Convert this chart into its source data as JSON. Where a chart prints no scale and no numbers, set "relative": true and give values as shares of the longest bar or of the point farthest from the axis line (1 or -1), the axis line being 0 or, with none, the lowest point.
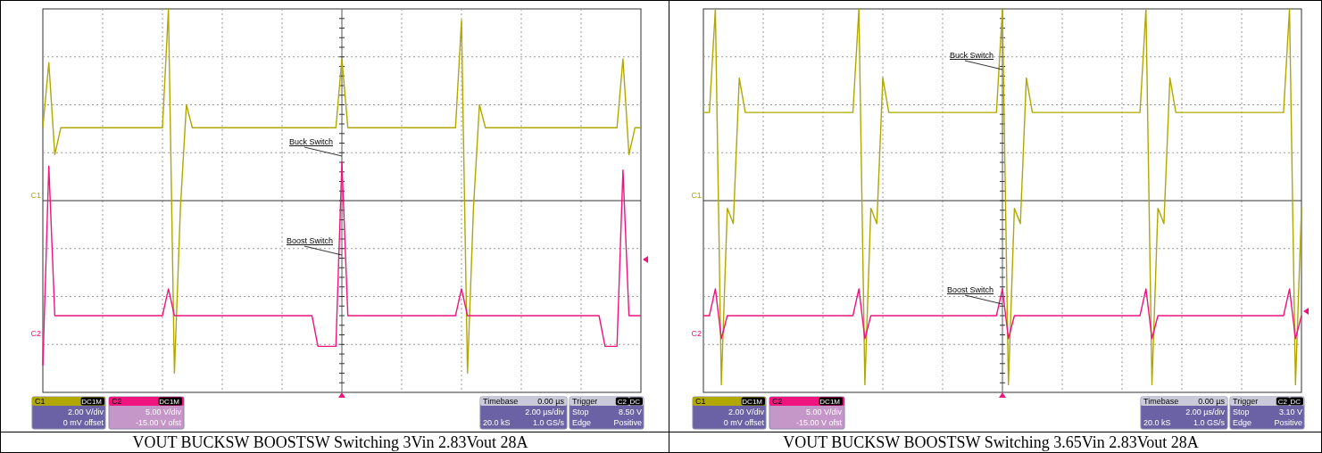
{
  "chart_data": [
    {
      "type": "line",
      "relative": true,
      "grid": true,
      "title": "VOUT BUCKSW BOOSTSW Switching 3Vin 2.83Vout 28A",
      "ref_lines": [
        {
          "axis": "y",
          "value": 0.5,
          "color": "#333333"
        }
      ],
      "categories": [
        null,
        null,
        null,
        null,
        null,
        null,
        null,
        null,
        null,
        null,
        null,
        null,
        null,
        null,
        null,
        null,
        null,
        null,
        null,
        null,
        null,
        null,
        null,
        null,
        null,
        null,
        null,
        null,
        null,
        null,
        null,
        null,
        null,
        null,
        null,
        null,
        null,
        null,
        null,
        null,
        null,
        null,
        null,
        null,
        null,
        null,
        null,
        null,
        null,
        null,
        null,
        null,
        null,
        null,
        null,
        null,
        null,
        null,
        null,
        null,
        null,
        null,
        null,
        null,
        null,
        null,
        null,
        null,
        null,
        null,
        null,
        null,
        null,
        null,
        null,
        null,
        null,
        null,
        null,
        null,
        null,
        null,
        null,
        null,
        null,
        null,
        null,
        null,
        null,
        null,
        null,
        null,
        null,
        null,
        null,
        null,
        null,
        null,
        null,
        null,
        null
      ],
      "series": [
        {
          "name": "C1",
          "color": "#b0a800",
          "values": [
            0.69,
            0.86,
            0.62,
            0.69,
            0.69,
            0.69,
            0.69,
            0.69,
            0.69,
            0.69,
            0.69,
            0.69,
            0.69,
            0.69,
            0.69,
            0.69,
            0.69,
            0.69,
            0.69,
            0.69,
            0.69,
            1,
            0.05,
            0.48,
            0.75,
            0.69,
            0.69,
            0.69,
            0.69,
            0.69,
            0.69,
            0.69,
            0.69,
            0.69,
            0.69,
            0.69,
            0.69,
            0.69,
            0.69,
            0.69,
            0.69,
            0.69,
            0.69,
            0.69,
            0.69,
            0.69,
            0.69,
            0.69,
            0.69,
            0.69,
            0.87,
            0.69,
            0.69,
            0.69,
            0.69,
            0.69,
            0.69,
            0.69,
            0.69,
            0.69,
            0.69,
            0.69,
            0.69,
            0.69,
            0.69,
            0.69,
            0.69,
            0.69,
            0.69,
            0.69,
            0.97,
            0.05,
            0.48,
            0.75,
            0.69,
            0.69,
            0.69,
            0.69,
            0.69,
            0.69,
            0.69,
            0.69,
            0.69,
            0.69,
            0.69,
            0.69,
            0.69,
            0.69,
            0.69,
            0.69,
            0.69,
            0.69,
            0.69,
            0.69,
            0.69,
            0.69,
            0.69,
            0.87,
            0.62,
            0.69,
            0.69
          ]
        },
        {
          "name": "C2",
          "color": "#f0147f",
          "values": [
            0.07,
            0.59,
            0.2,
            0.2,
            0.2,
            0.2,
            0.2,
            0.2,
            0.2,
            0.2,
            0.2,
            0.2,
            0.2,
            0.2,
            0.2,
            0.2,
            0.2,
            0.2,
            0.2,
            0.2,
            0.2,
            0.27,
            0.2,
            0.2,
            0.2,
            0.2,
            0.2,
            0.2,
            0.2,
            0.2,
            0.2,
            0.2,
            0.2,
            0.2,
            0.2,
            0.2,
            0.2,
            0.2,
            0.2,
            0.2,
            0.2,
            0.2,
            0.2,
            0.2,
            0.2,
            0.2,
            0.12,
            0.12,
            0.12,
            0.12,
            0.6,
            0.2,
            0.2,
            0.2,
            0.2,
            0.2,
            0.2,
            0.2,
            0.2,
            0.2,
            0.2,
            0.2,
            0.2,
            0.2,
            0.2,
            0.2,
            0.2,
            0.2,
            0.2,
            0.2,
            0.27,
            0.2,
            0.2,
            0.2,
            0.2,
            0.2,
            0.2,
            0.2,
            0.2,
            0.2,
            0.2,
            0.2,
            0.2,
            0.2,
            0.2,
            0.2,
            0.2,
            0.2,
            0.2,
            0.2,
            0.2,
            0.2,
            0.2,
            0.2,
            0.12,
            0.12,
            0.12,
            0.58,
            0.2,
            0.2,
            0.2
          ]
        }
      ],
      "annotations": [
        "Buck Switch",
        "Boost Switch",
        "C1",
        "DC1M",
        "2.00 V/div",
        "0 mV offset",
        "C2",
        "DC1M",
        "5.00 V/div",
        "-15.00 V ofst",
        "Timebase",
        "0.00 µs",
        "2.00 µs/div",
        "20.0 kS",
        "1.0 GS/s",
        "Trigger",
        "C2",
        "DC",
        "Stop",
        "8.50 V",
        "Edge",
        "Positive"
      ]
    },
    {
      "type": "line",
      "relative": true,
      "grid": true,
      "title": "VOUT BUCKSW BOOSTSW Switching 3.65Vin 2.83Vout 28A",
      "ref_lines": [
        {
          "axis": "y",
          "value": 0.5,
          "color": "#333333"
        }
      ],
      "categories": [
        null,
        null,
        null,
        null,
        null,
        null,
        null,
        null,
        null,
        null,
        null,
        null,
        null,
        null,
        null,
        null,
        null,
        null,
        null,
        null,
        null,
        null,
        null,
        null,
        null,
        null,
        null,
        null,
        null,
        null,
        null,
        null,
        null,
        null,
        null,
        null,
        null,
        null,
        null,
        null,
        null,
        null,
        null,
        null,
        null,
        null,
        null,
        null,
        null,
        null,
        null,
        null,
        null,
        null,
        null,
        null,
        null,
        null,
        null,
        null,
        null,
        null,
        null,
        null,
        null,
        null,
        null,
        null,
        null,
        null,
        null,
        null,
        null,
        null,
        null,
        null,
        null,
        null,
        null,
        null,
        null,
        null,
        null,
        null,
        null,
        null,
        null,
        null,
        null,
        null,
        null,
        null,
        null,
        null,
        null,
        null,
        null,
        null,
        null,
        null,
        null
      ],
      "series": [
        {
          "name": "C1",
          "color": "#b0a800",
          "values": [
            0.73,
            0.73,
            1,
            0.02,
            0.48,
            0.44,
            0.82,
            0.73,
            0.73,
            0.73,
            0.73,
            0.73,
            0.73,
            0.73,
            0.73,
            0.73,
            0.73,
            0.73,
            0.73,
            0.73,
            0.73,
            0.73,
            0.73,
            0.73,
            0.73,
            0.73,
            1,
            0.02,
            0.48,
            0.44,
            0.82,
            0.73,
            0.73,
            0.73,
            0.73,
            0.73,
            0.73,
            0.73,
            0.73,
            0.73,
            0.73,
            0.73,
            0.73,
            0.73,
            0.73,
            0.73,
            0.73,
            0.73,
            0.73,
            0.73,
            1,
            0.02,
            0.48,
            0.44,
            0.82,
            0.73,
            0.73,
            0.73,
            0.73,
            0.73,
            0.73,
            0.73,
            0.73,
            0.73,
            0.73,
            0.73,
            0.73,
            0.73,
            0.73,
            0.73,
            0.73,
            0.73,
            0.73,
            0.73,
            1,
            0.02,
            0.48,
            0.44,
            0.82,
            0.73,
            0.73,
            0.73,
            0.73,
            0.73,
            0.73,
            0.73,
            0.73,
            0.73,
            0.73,
            0.73,
            0.73,
            0.73,
            0.73,
            0.73,
            0.73,
            0.73,
            0.73,
            0.73,
            1,
            0.02,
            0.48
          ]
        },
        {
          "name": "C2",
          "color": "#f0147f",
          "values": [
            0.2,
            0.2,
            0.27,
            0.14,
            0.2,
            0.2,
            0.2,
            0.2,
            0.2,
            0.2,
            0.2,
            0.2,
            0.2,
            0.2,
            0.2,
            0.2,
            0.2,
            0.2,
            0.2,
            0.2,
            0.2,
            0.2,
            0.2,
            0.2,
            0.2,
            0.2,
            0.27,
            0.14,
            0.2,
            0.2,
            0.2,
            0.2,
            0.2,
            0.2,
            0.2,
            0.2,
            0.2,
            0.2,
            0.2,
            0.2,
            0.2,
            0.2,
            0.2,
            0.2,
            0.2,
            0.2,
            0.2,
            0.2,
            0.2,
            0.2,
            0.27,
            0.14,
            0.2,
            0.2,
            0.2,
            0.2,
            0.2,
            0.2,
            0.2,
            0.2,
            0.2,
            0.2,
            0.2,
            0.2,
            0.2,
            0.2,
            0.2,
            0.2,
            0.2,
            0.2,
            0.2,
            0.2,
            0.2,
            0.2,
            0.27,
            0.14,
            0.2,
            0.2,
            0.2,
            0.2,
            0.2,
            0.2,
            0.2,
            0.2,
            0.2,
            0.2,
            0.2,
            0.2,
            0.2,
            0.2,
            0.2,
            0.2,
            0.2,
            0.2,
            0.2,
            0.2,
            0.2,
            0.2,
            0.27,
            0.14,
            0.2
          ]
        }
      ],
      "annotations": [
        "Buck Switch",
        "Boost Switch",
        "C1",
        "DC1M",
        "2.00 V/div",
        "0 mV offset",
        "C2",
        "DC1M",
        "5.00 V/div",
        "-15.00 V ofst",
        "Timebase",
        "0.00 µs",
        "2.00 µs/div",
        "20.0 kS",
        "1.0 GS/s",
        "Trigger",
        "C2",
        "DC",
        "Stop",
        "3.10 V",
        "Edge",
        "Positive"
      ]
    }
  ]
}
